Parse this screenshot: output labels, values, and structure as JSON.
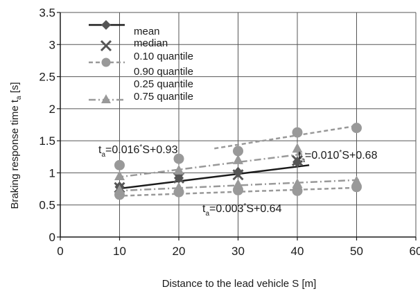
{
  "chart_data": {
    "type": "scatter",
    "title": "",
    "xlabel": "Distance to the lead vehicle S [m]",
    "ylabel_main": "Braking  response time t",
    "ylabel_sub": "a",
    "ylabel_unit": " [s]",
    "xlim": [
      0,
      60
    ],
    "ylim": [
      0,
      3.5
    ],
    "xticks": [
      "0",
      "10",
      "20",
      "30",
      "40",
      "50",
      "60"
    ],
    "yticks": [
      "0",
      "0.5",
      "1",
      "1.5",
      "2",
      "2.5",
      "3",
      "3.5"
    ],
    "grid": true,
    "legend_position": "top-left",
    "legend": [
      {
        "label": "mean",
        "symbol": "line-diamond"
      },
      {
        "label": "median",
        "symbol": "cross"
      },
      {
        "label": "0.10 quantile",
        "symbol": "dash-circle"
      },
      {
        "label": "0.90 quantile",
        "symbol": "circle"
      },
      {
        "label": "0.25 quantile",
        "symbol": "none"
      },
      {
        "label": "0.75 quantile",
        "symbol": "dashdot-triangle"
      }
    ],
    "series": [
      {
        "name": "mean",
        "marker": "diamond",
        "color": "#555555",
        "x": [
          10,
          20,
          30,
          40
        ],
        "y": [
          0.78,
          0.92,
          1.01,
          1.17
        ]
      },
      {
        "name": "median",
        "marker": "cross",
        "color": "#555555",
        "x": [
          10,
          20,
          30,
          40
        ],
        "y": [
          0.77,
          0.92,
          0.97,
          1.19
        ]
      },
      {
        "name": "0.10 quantile",
        "marker": "circle",
        "color": "#999999",
        "x": [
          10,
          20,
          30,
          40,
          50
        ],
        "y": [
          0.66,
          0.7,
          0.73,
          0.72,
          0.78
        ]
      },
      {
        "name": "0.90 quantile",
        "marker": "circle",
        "color": "#999999",
        "x": [
          10,
          20,
          30,
          40,
          50
        ],
        "y": [
          1.12,
          1.22,
          1.34,
          1.63,
          1.7
        ]
      },
      {
        "name": "0.25 quantile",
        "marker": "triangle",
        "color": "#999999",
        "x": [
          10,
          20,
          30,
          40,
          50
        ],
        "y": [
          0.73,
          0.77,
          0.82,
          0.83,
          0.87
        ]
      },
      {
        "name": "0.75 quantile",
        "marker": "triangle",
        "color": "#999999",
        "x": [
          10,
          20,
          30,
          40
        ],
        "y": [
          0.95,
          1.04,
          1.2,
          1.38
        ]
      }
    ],
    "fit_lines": [
      {
        "series": "mean",
        "style": "solid",
        "color": "#1a1a1a",
        "x": [
          9.5,
          42
        ],
        "y": [
          0.75,
          1.12
        ]
      },
      {
        "series": "0.10 quantile",
        "style": "dashed",
        "color": "#999999",
        "x": [
          9.5,
          50.5
        ],
        "y": [
          0.64,
          0.77
        ]
      },
      {
        "series": "0.90 quantile",
        "style": "dashed",
        "color": "#999999",
        "x": [
          26,
          50.5
        ],
        "y": [
          1.38,
          1.74
        ]
      },
      {
        "series": "0.25 quantile",
        "style": "dashdot",
        "color": "#999999",
        "x": [
          9.5,
          50.5
        ],
        "y": [
          0.72,
          0.89
        ]
      },
      {
        "series": "0.75 quantile",
        "style": "dashdot",
        "color": "#999999",
        "x": [
          9.5,
          41.5
        ],
        "y": [
          0.93,
          1.3
        ]
      }
    ],
    "annotations": [
      {
        "pre": "t",
        "sub": "a",
        "eq": "=0.016",
        "sup": "*",
        "rest": "S+0.93"
      },
      {
        "pre": "t",
        "sub": "a",
        "eq": "=0.010",
        "sup": "*",
        "rest": "S+0.68"
      },
      {
        "pre": "t",
        "sub": "a",
        "eq": "=0.003",
        "sup": "*",
        "rest": "S+0.64"
      }
    ]
  }
}
